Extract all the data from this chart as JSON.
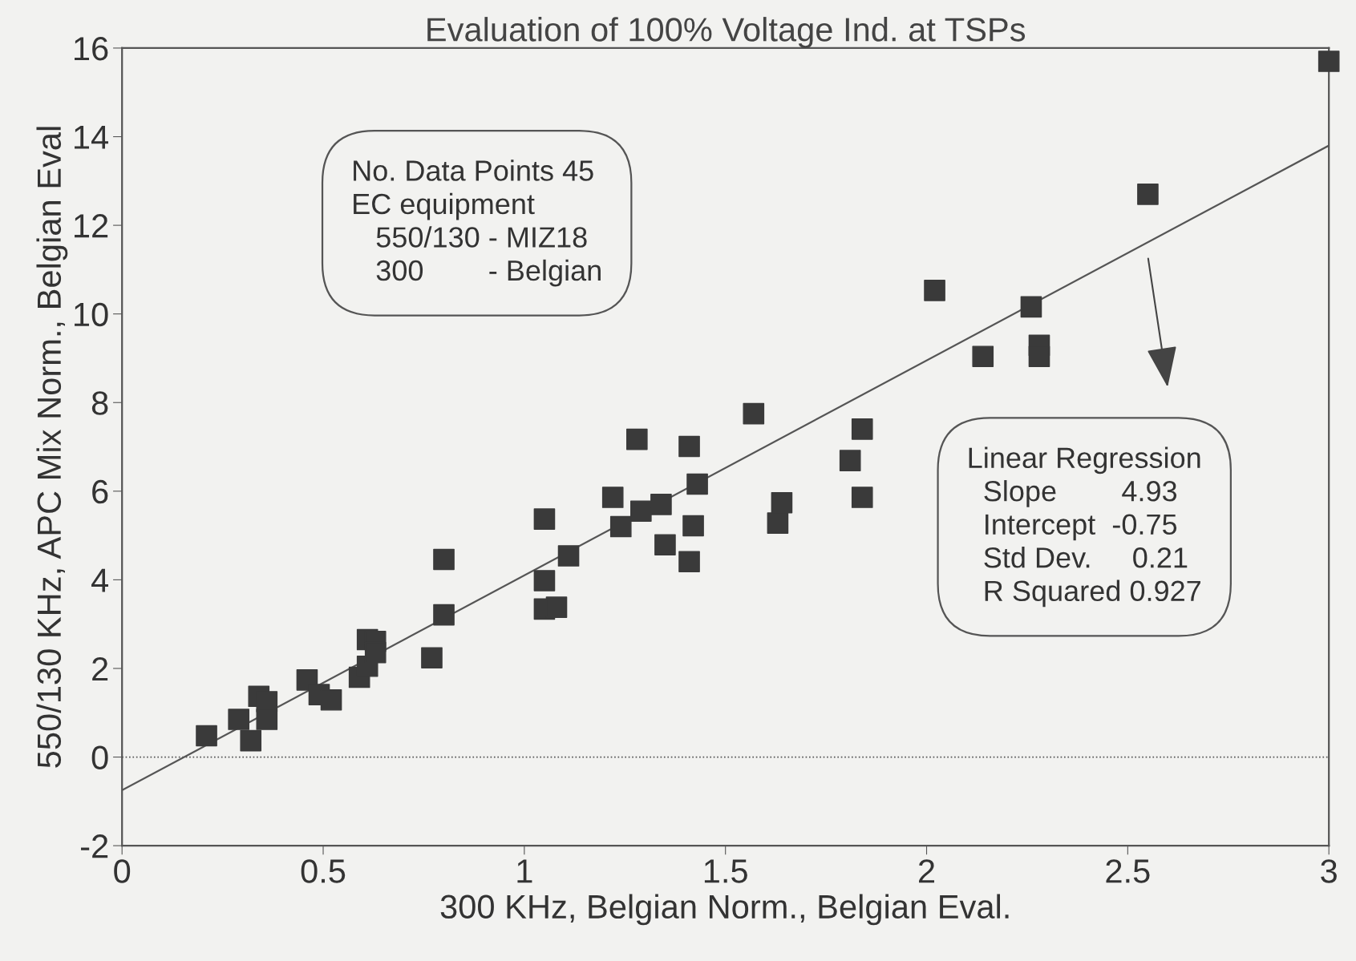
{
  "chart_data": {
    "type": "scatter",
    "title": "Evaluation of 100% Voltage Ind. at TSPs",
    "xlabel": "300 KHz, Belgian Norm., Belgian Eval.",
    "ylabel": "550/130 KHz, APC Mix Norm., Belgian Eval",
    "xlim": [
      0,
      3
    ],
    "xticks": [
      0,
      0.5,
      1,
      1.5,
      2,
      2.5,
      3
    ],
    "ylim": [
      -2,
      16
    ],
    "yticks": [
      -2,
      0,
      2,
      4,
      6,
      8,
      10,
      12,
      14,
      16
    ],
    "grid": false,
    "marker": "square",
    "series": [
      {
        "color": "#3a3a3a",
        "x": [
          0.21,
          0.29,
          0.32,
          0.34,
          0.36,
          0.36,
          0.46,
          0.49,
          0.52,
          0.59,
          0.61,
          0.61,
          0.63,
          0.63,
          0.77,
          0.8,
          0.8,
          1.05,
          1.05,
          1.08,
          1.05,
          1.11,
          1.22,
          1.24,
          1.28,
          1.29,
          1.34,
          1.35,
          1.41,
          1.42,
          1.41,
          1.43,
          1.57,
          1.63,
          1.64,
          1.81,
          1.84,
          1.84,
          2.02,
          2.14,
          2.26,
          2.28,
          2.28,
          2.55,
          3.0
        ],
        "values": [
          0.48,
          0.85,
          0.37,
          1.37,
          1.25,
          0.85,
          1.74,
          1.41,
          1.29,
          1.8,
          2.05,
          2.65,
          2.61,
          2.36,
          2.24,
          3.21,
          4.46,
          3.98,
          3.34,
          3.38,
          5.37,
          4.54,
          5.86,
          5.2,
          7.17,
          5.55,
          5.7,
          4.79,
          7.01,
          5.22,
          4.41,
          6.16,
          7.75,
          5.28,
          5.74,
          6.69,
          7.4,
          5.86,
          10.53,
          9.04,
          10.16,
          9.29,
          9.04,
          12.7,
          15.7
        ]
      },
      {
        "type": "line",
        "color": "#555555",
        "x": [
          0,
          3
        ],
        "values": [
          -0.75,
          13.8
        ],
        "marker": "none",
        "line_style": "solid"
      }
    ],
    "ref_lines": [
      {
        "axis": "y",
        "value": 0,
        "line_style": "dotted",
        "color": "#555555"
      }
    ],
    "annotations": [
      "No. Data Points 45\nEC equipment\n   550/130 - MIZ18\n   300        - Belgian",
      "Linear Regression\n  Slope        4.93\n  Intercept  -0.75\n  Std Dev.     0.21\n  R Squared 0.927"
    ]
  }
}
